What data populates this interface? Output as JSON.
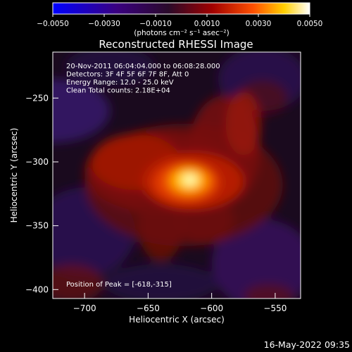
{
  "chart_data": {
    "type": "heatmap",
    "title": "Reconstructed RHESSI Image",
    "xlabel": "Heliocentric X (arcsec)",
    "ylabel": "Heliocentric Y (arcsec)",
    "xlim": [
      -725,
      -530
    ],
    "ylim": [
      -407,
      -214
    ],
    "xticks": [
      -700,
      -650,
      -600,
      -550
    ],
    "xtick_labels": [
      "−700",
      "−650",
      "−600",
      "−550"
    ],
    "yticks": [
      -250,
      -300,
      -350,
      -400
    ],
    "ytick_labels": [
      "−250",
      "−300",
      "−350",
      "−400"
    ],
    "colorbar": {
      "range": [
        -0.005,
        0.005
      ],
      "ticks": [
        -0.005,
        -0.003,
        -0.001,
        0.001,
        0.003,
        0.005
      ],
      "tick_labels": [
        "−0.0050",
        "−0.0030",
        "−0.0010",
        "0.0010",
        "0.0030",
        "0.0050"
      ],
      "unit_label": "(photons cm⁻² s⁻¹ asec⁻²)"
    },
    "peak": {
      "x": -618,
      "y": -315
    },
    "info_lines": [
      "20-Nov-2011 06:04:04.000 to 06:08:28.000",
      "Detectors: 3F 4F 5F 6F 7F 8F, Att 0",
      "Energy Range: 12.0 - 25.0 keV",
      "Clean     Total counts: 2.18E+04"
    ],
    "peak_label": "Position of Peak = [-618,-315]",
    "colors": {
      "background": "#000000",
      "colormap": "blue-purple-red-yellow-white"
    }
  },
  "footer": {
    "timestamp": "16-May-2022 09:35"
  }
}
